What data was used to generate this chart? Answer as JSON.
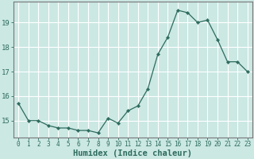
{
  "x": [
    0,
    1,
    2,
    3,
    4,
    5,
    6,
    7,
    8,
    9,
    10,
    11,
    12,
    13,
    14,
    15,
    16,
    17,
    18,
    19,
    20,
    21,
    22,
    23
  ],
  "y": [
    15.7,
    15.0,
    15.0,
    14.8,
    14.7,
    14.7,
    14.6,
    14.6,
    14.5,
    15.1,
    14.9,
    15.4,
    15.6,
    16.3,
    17.7,
    18.4,
    19.5,
    19.4,
    19.0,
    19.1,
    18.3,
    17.4,
    17.4,
    17.0
  ],
  "line_color": "#2e6b5e",
  "marker": "D",
  "marker_size": 2.2,
  "bg_color": "#cbe8e3",
  "grid_color": "#ffffff",
  "xlabel": "Humidex (Indice chaleur)",
  "ylabel_ticks": [
    15,
    16,
    17,
    18,
    19
  ],
  "ylim": [
    14.3,
    19.85
  ],
  "xlim": [
    -0.5,
    23.5
  ],
  "xticks": [
    0,
    1,
    2,
    3,
    4,
    5,
    6,
    7,
    8,
    9,
    10,
    11,
    12,
    13,
    14,
    15,
    16,
    17,
    18,
    19,
    20,
    21,
    22,
    23
  ],
  "tick_color": "#2e6b5e",
  "xlabel_fontsize": 7.5,
  "ytick_fontsize": 6.5,
  "xtick_fontsize": 5.5,
  "axis_color": "#888888",
  "spine_color": "#777777"
}
